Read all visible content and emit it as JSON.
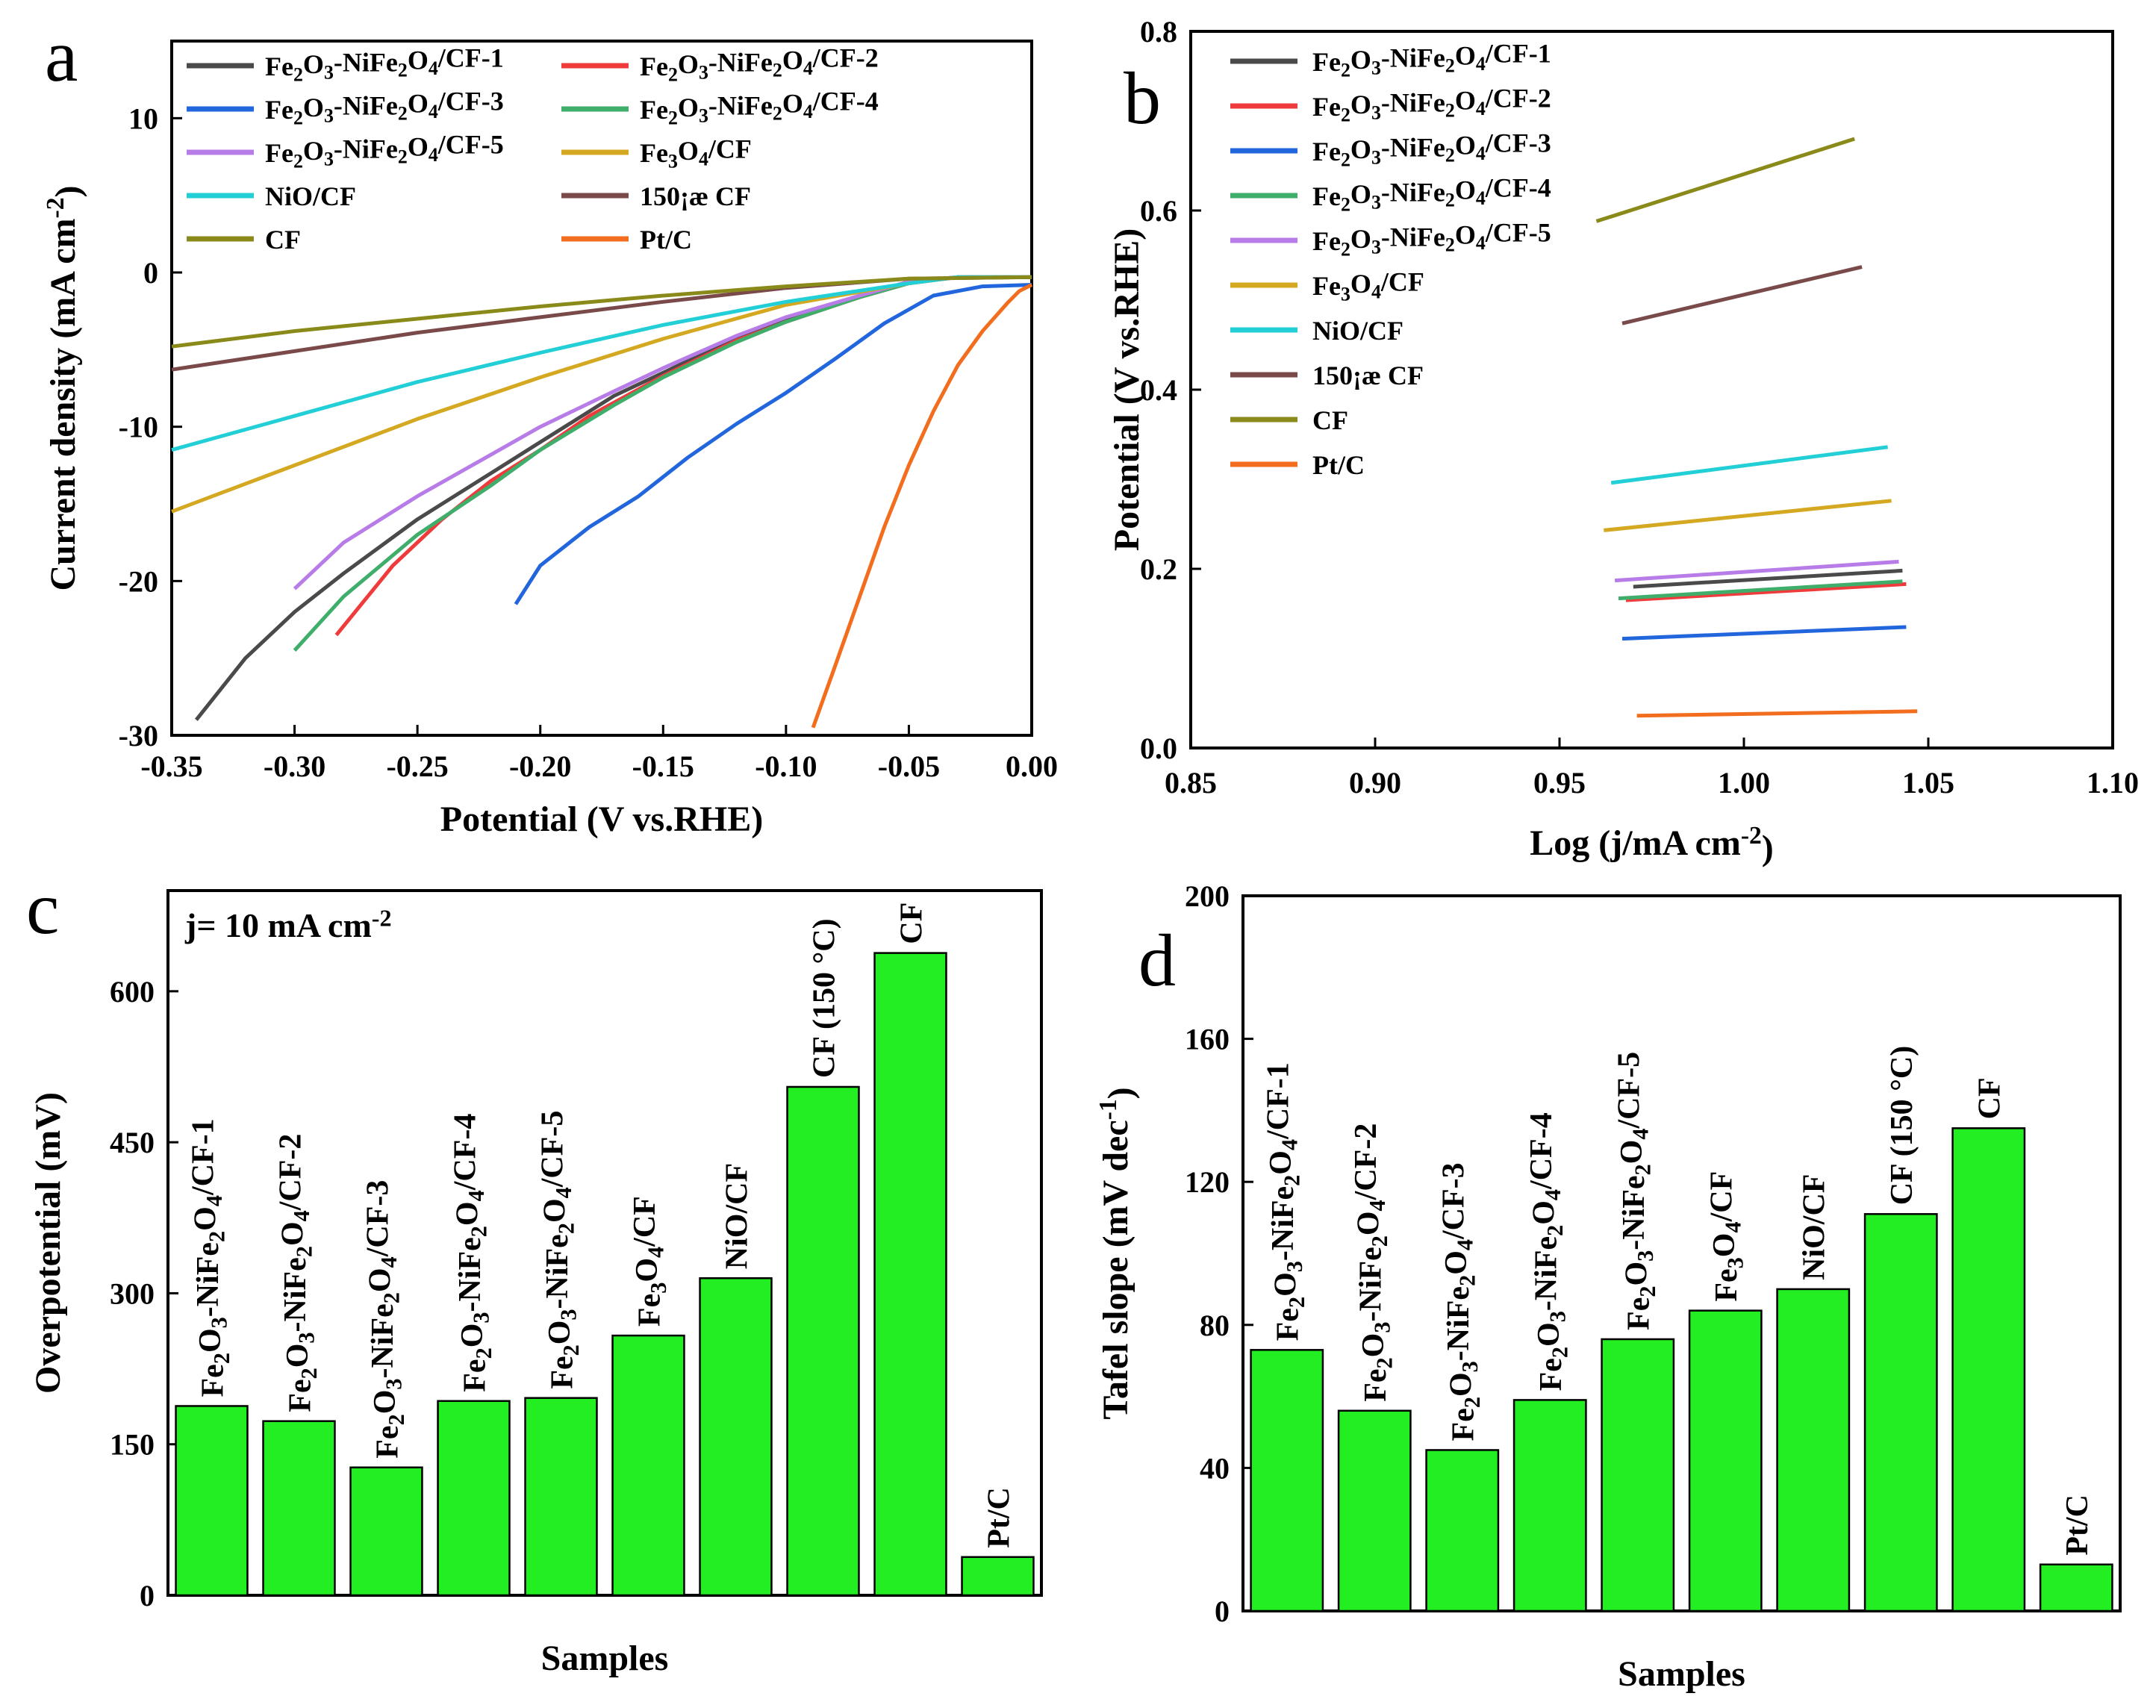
{
  "chart_data": [
    {
      "panel": "a",
      "type": "line",
      "title": "",
      "xlabel": "Potential (V vs.RHE)",
      "ylabel": "Current density (mA cm",
      "ylabel_sup": "-2",
      "ylabel_close": ")",
      "xlim": [
        -0.35,
        0.0
      ],
      "ylim": [
        -30,
        15
      ],
      "x_ticks": [
        -0.35,
        -0.3,
        -0.25,
        -0.2,
        -0.15,
        -0.1,
        -0.05,
        0.0
      ],
      "x_tick_labels": [
        "-0.35",
        "-0.30",
        "-0.25",
        "-0.20",
        "-0.15",
        "-0.10",
        "-0.05",
        "0.00"
      ],
      "y_ticks": [
        -30,
        -20,
        -10,
        0,
        10
      ],
      "y_tick_labels": [
        "-30",
        "-20",
        "-10",
        "0",
        "10"
      ],
      "legend_position": "top-left, two columns",
      "series": [
        {
          "name": "Fe2O3-NiFe2O4/CF-1",
          "color": "#4a4a4a",
          "x": [
            -0.34,
            -0.32,
            -0.3,
            -0.28,
            -0.25,
            -0.22,
            -0.2,
            -0.17,
            -0.15,
            -0.12,
            -0.1,
            -0.07,
            -0.05,
            -0.03,
            0.0
          ],
          "y": [
            -29.0,
            -25.0,
            -22.0,
            -19.5,
            -16.0,
            -13.0,
            -11.0,
            -8.0,
            -6.5,
            -4.2,
            -3.0,
            -1.5,
            -0.6,
            -0.3,
            -0.3
          ]
        },
        {
          "name": "Fe2O3-NiFe2O4/CF-2",
          "color": "#ef3b3b",
          "x": [
            -0.283,
            -0.26,
            -0.24,
            -0.22,
            -0.2,
            -0.18,
            -0.15,
            -0.12,
            -0.1,
            -0.07,
            -0.05,
            -0.03,
            0.0
          ],
          "y": [
            -23.5,
            -19.0,
            -16.0,
            -13.5,
            -11.5,
            -9.3,
            -6.7,
            -4.4,
            -3.2,
            -1.6,
            -0.7,
            -0.3,
            -0.3
          ]
        },
        {
          "name": "Fe2O3-NiFe2O4/CF-3",
          "color": "#2266dd",
          "x": [
            -0.21,
            -0.2,
            -0.18,
            -0.16,
            -0.14,
            -0.12,
            -0.1,
            -0.08,
            -0.06,
            -0.04,
            -0.02,
            0.0
          ],
          "y": [
            -21.5,
            -19.0,
            -16.5,
            -14.5,
            -12.0,
            -9.8,
            -7.8,
            -5.6,
            -3.3,
            -1.5,
            -0.9,
            -0.8
          ]
        },
        {
          "name": "Fe2O3-NiFe2O4/CF-4",
          "color": "#3fae6b",
          "x": [
            -0.3,
            -0.28,
            -0.25,
            -0.22,
            -0.2,
            -0.17,
            -0.15,
            -0.12,
            -0.1,
            -0.07,
            -0.05,
            -0.03,
            0.0
          ],
          "y": [
            -24.5,
            -21.0,
            -17.0,
            -13.8,
            -11.5,
            -8.6,
            -6.8,
            -4.5,
            -3.2,
            -1.6,
            -0.7,
            -0.3,
            -0.3
          ]
        },
        {
          "name": "Fe2O3-NiFe2O4/CF-5",
          "color": "#b77ce8",
          "x": [
            -0.3,
            -0.28,
            -0.25,
            -0.22,
            -0.2,
            -0.17,
            -0.15,
            -0.12,
            -0.1,
            -0.07,
            -0.05,
            -0.03,
            0.0
          ],
          "y": [
            -20.5,
            -17.5,
            -14.5,
            -11.8,
            -10.0,
            -7.7,
            -6.2,
            -4.1,
            -2.9,
            -1.5,
            -0.6,
            -0.3,
            -0.3
          ]
        },
        {
          "name": "Fe3O4/CF",
          "color": "#d4a820",
          "x": [
            -0.35,
            -0.3,
            -0.25,
            -0.2,
            -0.15,
            -0.1,
            -0.05,
            -0.03,
            0.0
          ],
          "y": [
            -15.5,
            -12.5,
            -9.5,
            -6.8,
            -4.3,
            -2.1,
            -0.7,
            -0.3,
            -0.3
          ]
        },
        {
          "name": "NiO/CF",
          "color": "#22cfd6",
          "x": [
            -0.35,
            -0.3,
            -0.25,
            -0.2,
            -0.15,
            -0.1,
            -0.05,
            -0.03,
            0.0
          ],
          "y": [
            -11.5,
            -9.3,
            -7.1,
            -5.2,
            -3.4,
            -1.9,
            -0.7,
            -0.3,
            -0.3
          ]
        },
        {
          "name": "150¡æ CF",
          "color": "#7a4a4a",
          "x": [
            -0.35,
            -0.3,
            -0.25,
            -0.2,
            -0.15,
            -0.1,
            -0.05,
            0.0
          ],
          "y": [
            -6.3,
            -5.1,
            -3.9,
            -2.9,
            -1.9,
            -1.0,
            -0.4,
            -0.3
          ]
        },
        {
          "name": "CF",
          "color": "#8a8a1a",
          "x": [
            -0.35,
            -0.3,
            -0.25,
            -0.2,
            -0.15,
            -0.1,
            -0.05,
            0.0
          ],
          "y": [
            -4.8,
            -3.8,
            -3.0,
            -2.2,
            -1.5,
            -0.9,
            -0.4,
            -0.3
          ]
        },
        {
          "name": "Pt/C",
          "color": "#f26e1e",
          "x": [
            -0.089,
            -0.08,
            -0.07,
            -0.06,
            -0.05,
            -0.04,
            -0.03,
            -0.02,
            -0.01,
            -0.005,
            0.0
          ],
          "y": [
            -29.5,
            -25.5,
            -21.0,
            -16.5,
            -12.5,
            -9.0,
            -6.0,
            -3.8,
            -2.0,
            -1.2,
            -0.8
          ]
        }
      ]
    },
    {
      "panel": "b",
      "type": "line",
      "title": "",
      "xlabel": "Log (j/mA cm",
      "xlabel_sup": "-2",
      "xlabel_close": ")",
      "ylabel": "Potential (V vs.RHE)",
      "xlim": [
        0.85,
        1.1
      ],
      "ylim": [
        0.0,
        0.8
      ],
      "x_ticks": [
        0.85,
        0.9,
        0.95,
        1.0,
        1.05,
        1.1
      ],
      "x_tick_labels": [
        "0.85",
        "0.90",
        "0.95",
        "1.00",
        "1.05",
        "1.10"
      ],
      "y_ticks": [
        0.0,
        0.2,
        0.4,
        0.6,
        0.8
      ],
      "y_tick_labels": [
        "0.0",
        "0.2",
        "0.4",
        "0.6",
        "0.8"
      ],
      "legend_position": "top-left, one column",
      "series": [
        {
          "name": "Fe2O3-NiFe2O4/CF-1",
          "color": "#4a4a4a",
          "x": [
            0.97,
            1.043
          ],
          "y": [
            0.18,
            0.198
          ]
        },
        {
          "name": "Fe2O3-NiFe2O4/CF-2",
          "color": "#ef3b3b",
          "x": [
            0.968,
            1.044
          ],
          "y": [
            0.165,
            0.183
          ]
        },
        {
          "name": "Fe2O3-NiFe2O4/CF-3",
          "color": "#2266dd",
          "x": [
            0.967,
            1.044
          ],
          "y": [
            0.122,
            0.135
          ]
        },
        {
          "name": "Fe2O3-NiFe2O4/CF-4",
          "color": "#3fae6b",
          "x": [
            0.966,
            1.043
          ],
          "y": [
            0.167,
            0.186
          ]
        },
        {
          "name": "Fe2O3-NiFe2O4/CF-5",
          "color": "#b77ce8",
          "x": [
            0.965,
            1.042
          ],
          "y": [
            0.187,
            0.208
          ]
        },
        {
          "name": "Fe3O4/CF",
          "color": "#d4a820",
          "x": [
            0.962,
            1.04
          ],
          "y": [
            0.243,
            0.276
          ]
        },
        {
          "name": "NiO/CF",
          "color": "#22cfd6",
          "x": [
            0.964,
            1.039
          ],
          "y": [
            0.296,
            0.336
          ]
        },
        {
          "name": "150¡æ CF",
          "color": "#7a4a4a",
          "x": [
            0.967,
            1.032
          ],
          "y": [
            0.474,
            0.537
          ]
        },
        {
          "name": "CF",
          "color": "#8a8a1a",
          "x": [
            0.96,
            1.03
          ],
          "y": [
            0.588,
            0.68
          ]
        },
        {
          "name": "Pt/C",
          "color": "#f26e1e",
          "x": [
            0.971,
            1.047
          ],
          "y": [
            0.036,
            0.041
          ]
        }
      ]
    },
    {
      "panel": "c",
      "type": "bar",
      "title": "",
      "annotation": "j= 10 mA cm",
      "annotation_sup": "-2",
      "xlabel": "Samples",
      "ylabel": "Overpotential (mV)",
      "ylim": [
        0,
        700
      ],
      "y_ticks": [
        0,
        150,
        300,
        450,
        600
      ],
      "y_tick_labels": [
        "0",
        "150",
        "300",
        "450",
        "600"
      ],
      "bar_color": "#22ee22",
      "categories": [
        "Fe2O3-NiFe2O4/CF-1",
        "Fe2O3-NiFe2O4/CF-2",
        "Fe2O3-NiFe2O4/CF-3",
        "Fe2O3-NiFe2O4/CF-4",
        "Fe2O3-NiFe2O4/CF-5",
        "Fe3O4/CF",
        "NiO/CF",
        "CF (150 °C)",
        "CF",
        "Pt/C"
      ],
      "values": [
        188,
        173,
        127,
        193,
        196,
        258,
        315,
        505,
        638,
        38
      ]
    },
    {
      "panel": "d",
      "type": "bar",
      "title": "",
      "xlabel": "Samples",
      "ylabel": "Tafel slope (mV dec",
      "ylabel_sup": "-1",
      "ylabel_close": ")",
      "ylim": [
        0,
        200
      ],
      "y_ticks": [
        0,
        40,
        80,
        120,
        160,
        200
      ],
      "y_tick_labels": [
        "0",
        "40",
        "80",
        "120",
        "160",
        "200"
      ],
      "bar_color": "#22ee22",
      "categories": [
        "Fe2O3-NiFe2O4/CF-1",
        "Fe2O3-NiFe2O4/CF-2",
        "Fe2O3-NiFe2O4/CF-3",
        "Fe2O3-NiFe2O4/CF-4",
        "Fe2O3-NiFe2O4/CF-5",
        "Fe3O4/CF",
        "NiO/CF",
        "CF (150 °C)",
        "CF",
        "Pt/C"
      ],
      "values": [
        73,
        56,
        45,
        59,
        76,
        84,
        90,
        111,
        135,
        13
      ]
    }
  ],
  "panel_letters": [
    "a",
    "b",
    "c",
    "d"
  ]
}
